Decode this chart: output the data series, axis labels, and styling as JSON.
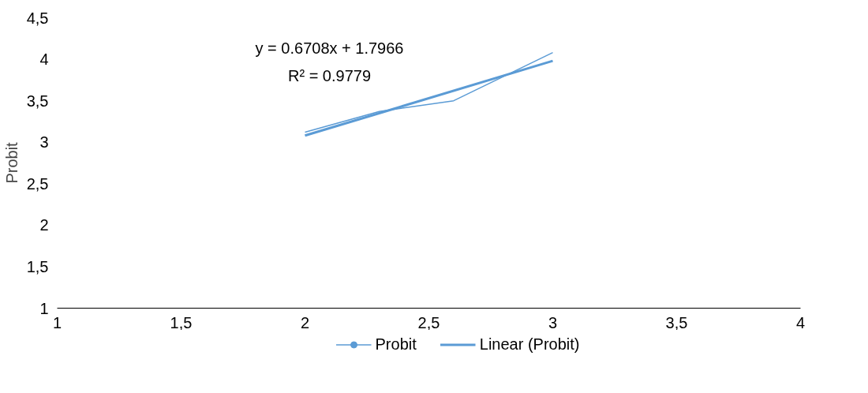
{
  "chart_data": {
    "type": "line",
    "ylabel": "Probit",
    "xlim": [
      1,
      4
    ],
    "xticks": [
      {
        "value": 1,
        "label": "1"
      },
      {
        "value": 1.5,
        "label": "1,5"
      },
      {
        "value": 2,
        "label": "2"
      },
      {
        "value": 2.5,
        "label": "2,5"
      },
      {
        "value": 3,
        "label": "3"
      },
      {
        "value": 3.5,
        "label": "3,5"
      },
      {
        "value": 4,
        "label": "4"
      }
    ],
    "ylim": [
      1,
      4.5
    ],
    "yticks": [
      {
        "value": 1,
        "label": "1"
      },
      {
        "value": 1.5,
        "label": "1,5"
      },
      {
        "value": 2,
        "label": "2"
      },
      {
        "value": 2.5,
        "label": "2,5"
      },
      {
        "value": 3,
        "label": "3"
      },
      {
        "value": 3.5,
        "label": "3,5"
      },
      {
        "value": 4,
        "label": "4"
      },
      {
        "value": 4.5,
        "label": "4,5"
      }
    ],
    "series": [
      {
        "name": "Probit",
        "color": "#5b9bd5",
        "x": [
          2,
          2.3,
          2.6,
          3
        ],
        "values": [
          3.12,
          3.37,
          3.5,
          4.08
        ]
      },
      {
        "name": "Linear (Probit)",
        "color": "#5b9bd5",
        "x": [
          2,
          3
        ],
        "values": [
          3.08,
          3.98
        ]
      }
    ],
    "annotations": [
      "y = 0.6708x + 1.7966\nR² = 0.9779"
    ],
    "grid": false,
    "legend": "bottom",
    "marker": "none",
    "line_style": "solid"
  }
}
